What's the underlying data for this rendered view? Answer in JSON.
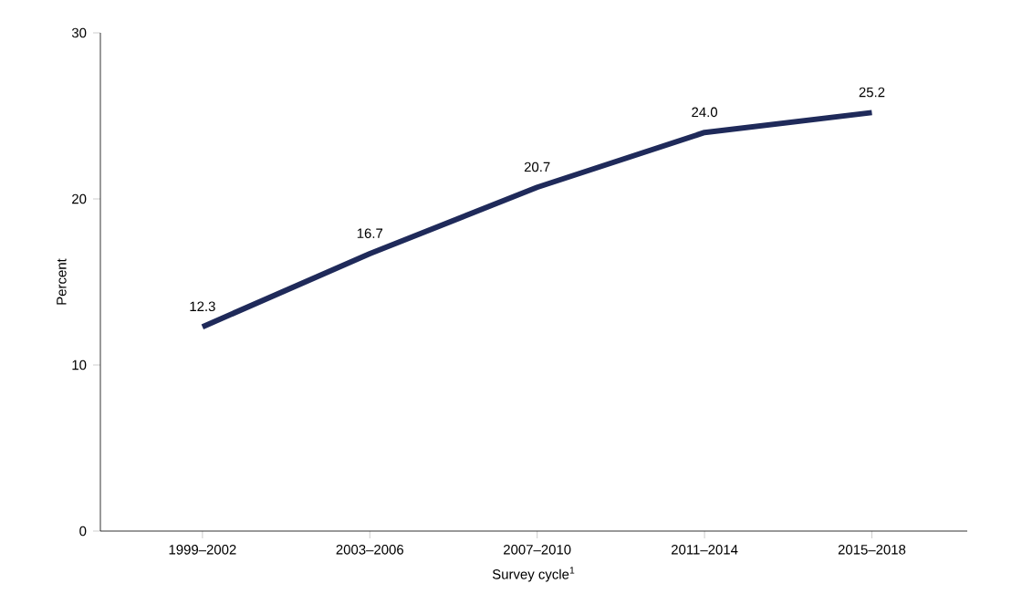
{
  "chart_data": {
    "type": "line",
    "xlabel": "Survey cycle$^{1}$",
    "ylabel": "Percent",
    "categories": [
      "1999–2002",
      "2003–2006",
      "2007–2010",
      "2011–2014",
      "2015–2018"
    ],
    "values": [
      12.3,
      16.7,
      20.7,
      24.0,
      25.2
    ],
    "value_labels": [
      "12.3",
      "16.7",
      "20.7",
      "24.0",
      "25.2"
    ],
    "color": "#1f2a5a",
    "ylim": [
      0,
      30
    ],
    "yticks": [
      0,
      10,
      20,
      30
    ],
    "grid": false,
    "marker": "none",
    "line_style": "solid"
  }
}
